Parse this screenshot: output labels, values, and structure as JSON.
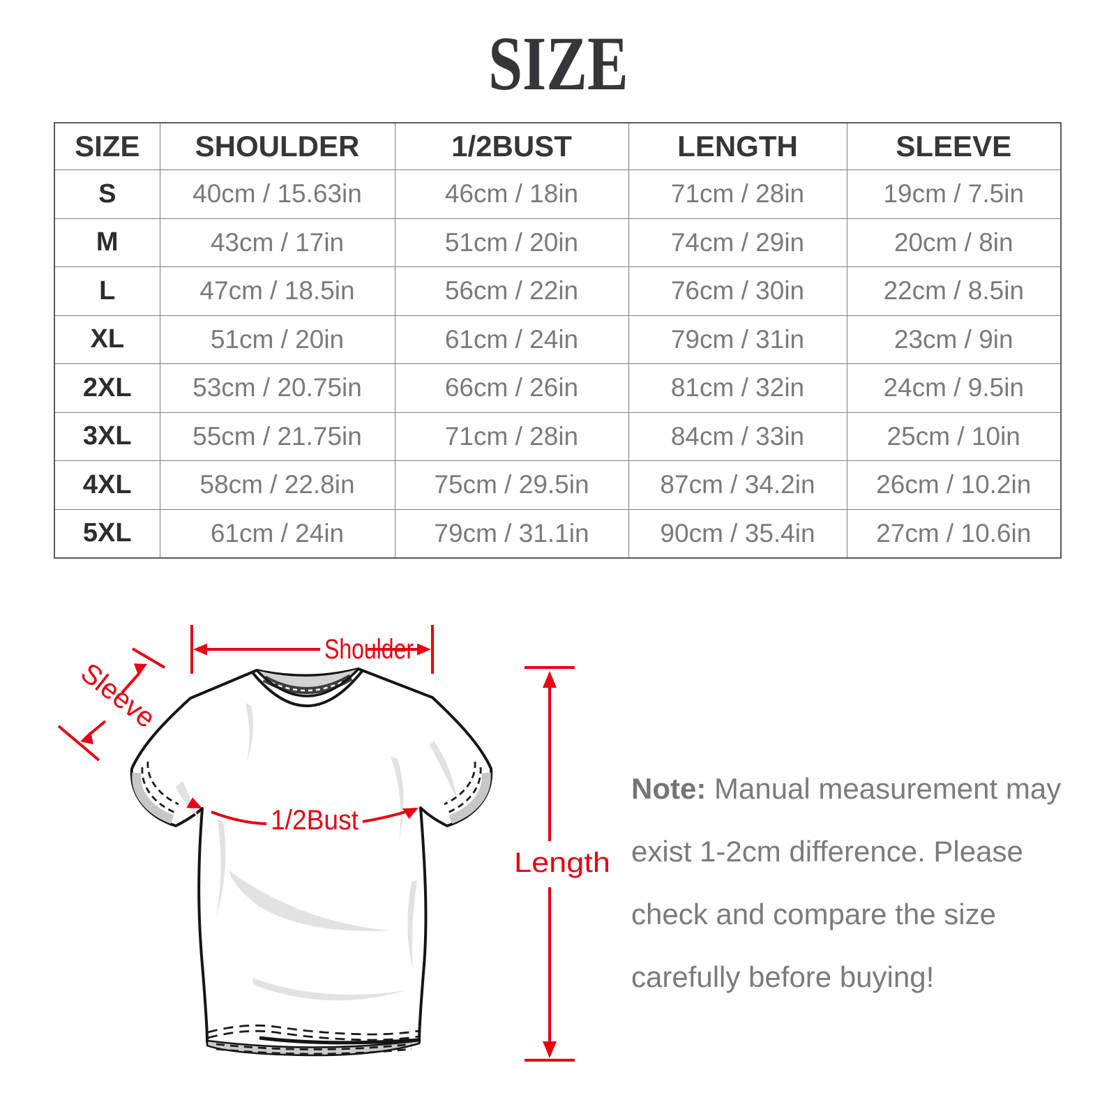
{
  "title": "SIZE",
  "table": {
    "headers": [
      "SIZE",
      "SHOULDER",
      "1/2BUST",
      "LENGTH",
      "SLEEVE"
    ],
    "rows": [
      [
        "S",
        "40cm / 15.63in",
        "46cm / 18in",
        "71cm / 28in",
        "19cm / 7.5in"
      ],
      [
        "M",
        "43cm / 17in",
        "51cm / 20in",
        "74cm / 29in",
        "20cm / 8in"
      ],
      [
        "L",
        "47cm / 18.5in",
        "56cm / 22in",
        "76cm / 30in",
        "22cm / 8.5in"
      ],
      [
        "XL",
        "51cm / 20in",
        "61cm / 24in",
        "79cm / 31in",
        "23cm / 9in"
      ],
      [
        "2XL",
        "53cm / 20.75in",
        "66cm / 26in",
        "81cm / 32in",
        "24cm / 9.5in"
      ],
      [
        "3XL",
        "55cm / 21.75in",
        "71cm / 28in",
        "84cm / 33in",
        "25cm / 10in"
      ],
      [
        "4XL",
        "58cm / 22.8in",
        "75cm / 29.5in",
        "87cm / 34.2in",
        "26cm / 10.2in"
      ],
      [
        "5XL",
        "61cm / 24in",
        "79cm / 31.1in",
        "90cm / 35.4in",
        "27cm / 10.6in"
      ]
    ]
  },
  "diagram": {
    "labels": {
      "shoulder": "Shoulder",
      "sleeve": "Sleeve",
      "bust": "1/2Bust",
      "length": "Length"
    },
    "accent_color": "#e60012"
  },
  "note": {
    "prefix": "Note:",
    "body": " Manual measurement may exist 1-2cm difference. Please check and compare the size carefully before buying!"
  }
}
